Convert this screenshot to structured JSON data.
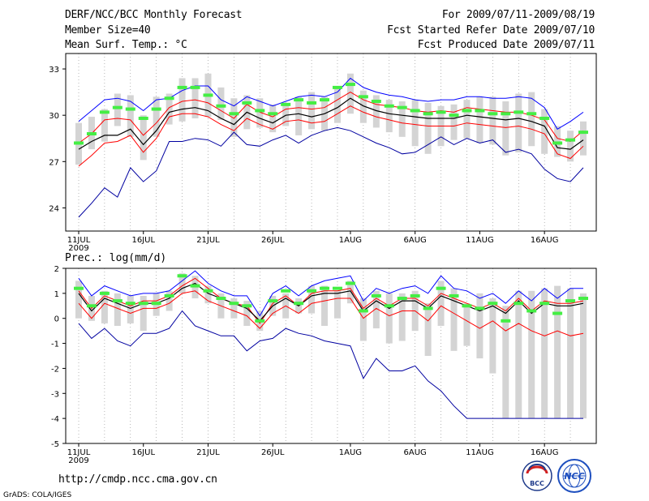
{
  "header": {
    "title": "DERF/NCC/BCC Monthly Forecast",
    "member_size": "Member Size=40",
    "variable": "Mean Surf. Temp.: °C",
    "period": "For 2009/07/11-2009/08/19",
    "fcst_started": "Fcst Started Refer Date 2009/07/10",
    "fcst_produced": "Fcst Produced Date 2009/07/11"
  },
  "colors": {
    "max_line": "#0000ff",
    "min_line": "#0000a0",
    "spread_line": "#ff0000",
    "mean_line": "#000000",
    "box": "#d4d4d4",
    "observed_marker": "#44ee44"
  },
  "footer": {
    "url": "http://cmdp.ncc.cma.gov.cn",
    "credit": "GrADS: COLA/IGES",
    "logo1_text": "BCC",
    "logo2_text": "NCC"
  },
  "chart_data": [
    {
      "type": "line",
      "title": "Mean Surf. Temp.: °C",
      "x_tick_labels": [
        "11JUL",
        "16JUL",
        "21JUL",
        "26JUL",
        "1AUG",
        "6AUG",
        "11AUG",
        "16AUG"
      ],
      "x_tick_days": [
        0,
        5,
        10,
        15,
        21,
        26,
        31,
        36
      ],
      "year_label": "2009",
      "days": 40,
      "ylim": [
        22.5,
        34
      ],
      "yticks": [
        24,
        27,
        30,
        33
      ],
      "series": [
        {
          "name": "max",
          "values": [
            29.6,
            30.3,
            31.0,
            31.1,
            30.9,
            30.3,
            31.0,
            31.1,
            31.6,
            31.9,
            31.9,
            31.0,
            30.6,
            31.2,
            30.9,
            30.6,
            30.9,
            31.2,
            31.3,
            31.2,
            31.5,
            32.4,
            31.8,
            31.5,
            31.3,
            31.2,
            31.0,
            30.9,
            31.0,
            31.0,
            31.2,
            31.2,
            31.1,
            31.1,
            31.2,
            31.1,
            30.5,
            29.1,
            29.6,
            30.2
          ]
        },
        {
          "name": "upper",
          "values": [
            28.2,
            28.8,
            29.7,
            29.8,
            29.7,
            28.7,
            29.5,
            30.5,
            30.9,
            31.0,
            30.8,
            30.3,
            29.8,
            30.7,
            30.2,
            29.9,
            30.4,
            30.5,
            30.4,
            30.5,
            31.0,
            31.5,
            31.0,
            30.7,
            30.6,
            30.5,
            30.3,
            30.2,
            30.3,
            30.2,
            30.5,
            30.4,
            30.3,
            30.2,
            30.2,
            30.0,
            29.7,
            28.5,
            28.3,
            29.0
          ]
        },
        {
          "name": "mean",
          "values": [
            27.8,
            28.3,
            28.7,
            28.7,
            29.1,
            28.1,
            29.0,
            30.2,
            30.4,
            30.5,
            30.3,
            29.8,
            29.4,
            30.2,
            29.8,
            29.5,
            30.0,
            30.1,
            29.9,
            30.1,
            30.5,
            31.1,
            30.6,
            30.3,
            30.1,
            30.0,
            29.9,
            29.8,
            29.8,
            29.8,
            30.0,
            29.9,
            29.8,
            29.7,
            29.8,
            29.6,
            29.3,
            27.9,
            27.8,
            28.4
          ]
        },
        {
          "name": "lower",
          "values": [
            26.7,
            27.4,
            28.2,
            28.3,
            28.7,
            27.6,
            28.5,
            29.9,
            30.1,
            30.1,
            29.9,
            29.4,
            29.0,
            29.8,
            29.4,
            29.1,
            29.6,
            29.7,
            29.5,
            29.6,
            30.1,
            30.6,
            30.2,
            29.9,
            29.7,
            29.5,
            29.4,
            29.3,
            29.3,
            29.3,
            29.5,
            29.4,
            29.3,
            29.2,
            29.3,
            29.1,
            28.8,
            27.5,
            27.2,
            28.0
          ]
        },
        {
          "name": "min",
          "values": [
            23.4,
            24.3,
            25.3,
            24.7,
            26.6,
            25.7,
            26.4,
            28.3,
            28.3,
            28.5,
            28.4,
            28.0,
            28.9,
            28.1,
            28.0,
            28.4,
            28.7,
            28.2,
            28.7,
            29.0,
            29.2,
            29.0,
            28.6,
            28.2,
            27.9,
            27.5,
            27.6,
            28.1,
            28.6,
            28.1,
            28.5,
            28.2,
            28.4,
            27.6,
            27.8,
            27.5,
            26.5,
            25.9,
            25.7,
            26.6
          ]
        }
      ],
      "boxes": [
        [
          26.8,
          29.5
        ],
        [
          27.8,
          29.9
        ],
        [
          28.3,
          30.4
        ],
        [
          29.3,
          31.4
        ],
        [
          28.6,
          31.3
        ],
        [
          27.1,
          30.0
        ],
        [
          28.6,
          31.2
        ],
        [
          29.4,
          31.4
        ],
        [
          29.6,
          32.4
        ],
        [
          29.8,
          32.4
        ],
        [
          29.9,
          32.7
        ],
        [
          29.7,
          31.8
        ],
        [
          28.6,
          31.1
        ],
        [
          29.1,
          31.3
        ],
        [
          29.2,
          31.1
        ],
        [
          28.9,
          30.7
        ],
        [
          29.3,
          30.8
        ],
        [
          28.7,
          31.2
        ],
        [
          29.1,
          31.5
        ],
        [
          29.0,
          31.2
        ],
        [
          29.5,
          31.8
        ],
        [
          30.1,
          32.7
        ],
        [
          29.5,
          31.6
        ],
        [
          29.2,
          31.3
        ],
        [
          28.9,
          31.0
        ],
        [
          28.6,
          30.9
        ],
        [
          28.0,
          31.0
        ],
        [
          27.5,
          30.8
        ],
        [
          28.0,
          30.6
        ],
        [
          28.4,
          30.7
        ],
        [
          28.5,
          31.0
        ],
        [
          28.2,
          31.2
        ],
        [
          28.1,
          31.2
        ],
        [
          27.4,
          30.9
        ],
        [
          27.6,
          31.4
        ],
        [
          28.0,
          31.5
        ],
        [
          27.5,
          30.4
        ],
        [
          27.3,
          29.3
        ],
        [
          27.0,
          29.0
        ],
        [
          27.4,
          29.6
        ]
      ],
      "markers": [
        28.2,
        28.8,
        30.2,
        30.5,
        30.4,
        29.8,
        30.4,
        31.1,
        31.8,
        31.8,
        31.3,
        30.6,
        30.1,
        30.8,
        30.3,
        30.1,
        30.7,
        31.0,
        30.8,
        31.0,
        31.8,
        32.0,
        31.2,
        30.9,
        30.6,
        30.5,
        30.3,
        30.1,
        30.2,
        30.0,
        30.3,
        30.3,
        30.1,
        30.1,
        30.2,
        30.1,
        29.8,
        28.2,
        28.4,
        28.9
      ]
    },
    {
      "type": "line",
      "title": "Prec.: log(mm/d)",
      "x_tick_labels": [
        "11JUL",
        "16JUL",
        "21JUL",
        "26JUL",
        "1AUG",
        "6AUG",
        "11AUG",
        "16AUG"
      ],
      "x_tick_days": [
        0,
        5,
        10,
        15,
        21,
        26,
        31,
        36
      ],
      "year_label": "2009",
      "days": 40,
      "ylim": [
        -5,
        2
      ],
      "yticks": [
        -5,
        -4,
        -3,
        -2,
        -1,
        0,
        1,
        2
      ],
      "series": [
        {
          "name": "max",
          "values": [
            1.6,
            0.9,
            1.3,
            1.1,
            0.9,
            1.0,
            1.0,
            1.1,
            1.5,
            1.9,
            1.4,
            1.1,
            0.9,
            0.9,
            0.1,
            1.0,
            1.3,
            0.9,
            1.3,
            1.5,
            1.6,
            1.7,
            0.7,
            1.2,
            1.0,
            1.2,
            1.3,
            1.0,
            1.7,
            1.2,
            1.1,
            0.8,
            1.0,
            0.6,
            1.1,
            0.7,
            1.2,
            0.8,
            1.2,
            1.2
          ]
        },
        {
          "name": "upper",
          "values": [
            1.1,
            0.4,
            0.9,
            0.7,
            0.5,
            0.7,
            0.7,
            0.9,
            1.3,
            1.6,
            1.2,
            0.8,
            0.6,
            0.5,
            -0.2,
            0.6,
            0.9,
            0.5,
            1.0,
            1.1,
            1.1,
            1.2,
            0.4,
            0.8,
            0.5,
            0.8,
            0.8,
            0.5,
            1.0,
            0.8,
            0.6,
            0.4,
            0.6,
            0.3,
            0.8,
            0.3,
            0.7,
            0.6,
            0.6,
            0.7
          ]
        },
        {
          "name": "mean",
          "values": [
            1.0,
            0.3,
            0.8,
            0.6,
            0.4,
            0.6,
            0.6,
            0.8,
            1.2,
            1.4,
            1.0,
            0.8,
            0.6,
            0.4,
            -0.1,
            0.5,
            0.8,
            0.5,
            0.9,
            1.0,
            1.0,
            1.1,
            0.3,
            0.7,
            0.4,
            0.7,
            0.7,
            0.4,
            0.9,
            0.7,
            0.5,
            0.3,
            0.5,
            0.2,
            0.7,
            0.2,
            0.6,
            0.5,
            0.5,
            0.6
          ]
        },
        {
          "name": "lower",
          "values": [
            0.6,
            0.0,
            0.6,
            0.4,
            0.2,
            0.4,
            0.4,
            0.6,
            1.0,
            1.1,
            0.7,
            0.5,
            0.3,
            0.1,
            -0.4,
            0.2,
            0.5,
            0.2,
            0.6,
            0.7,
            0.8,
            0.8,
            0.0,
            0.4,
            0.1,
            0.3,
            0.3,
            -0.1,
            0.5,
            0.2,
            -0.1,
            -0.4,
            -0.1,
            -0.5,
            -0.2,
            -0.5,
            -0.7,
            -0.5,
            -0.7,
            -0.6
          ]
        },
        {
          "name": "min",
          "values": [
            -0.2,
            -0.8,
            -0.4,
            -0.9,
            -1.1,
            -0.6,
            -0.6,
            -0.4,
            0.3,
            -0.3,
            -0.5,
            -0.7,
            -0.7,
            -1.3,
            -0.9,
            -0.8,
            -0.4,
            -0.6,
            -0.7,
            -0.9,
            -1.0,
            -1.1,
            -2.4,
            -1.6,
            -2.1,
            -2.1,
            -1.9,
            -2.5,
            -2.9,
            -3.5,
            -4.0,
            -4.0,
            -4.0,
            -4.0,
            -4.0,
            -4.0,
            -4.0,
            -4.0,
            -4.0,
            -4.0
          ]
        }
      ],
      "boxes": [
        [
          0.0,
          1.5
        ],
        [
          -0.1,
          0.9
        ],
        [
          -0.2,
          1.1
        ],
        [
          -0.3,
          1.0
        ],
        [
          -0.2,
          0.9
        ],
        [
          -0.5,
          0.9
        ],
        [
          0.1,
          1.0
        ],
        [
          0.3,
          1.1
        ],
        [
          1.0,
          1.8
        ],
        [
          0.8,
          1.7
        ],
        [
          0.6,
          1.3
        ],
        [
          0.0,
          1.0
        ],
        [
          0.0,
          0.8
        ],
        [
          -0.3,
          0.7
        ],
        [
          -0.5,
          0.3
        ],
        [
          0.1,
          0.9
        ],
        [
          0.0,
          1.0
        ],
        [
          0.2,
          0.8
        ],
        [
          0.2,
          1.3
        ],
        [
          -0.3,
          1.3
        ],
        [
          0.0,
          1.1
        ],
        [
          0.6,
          1.5
        ],
        [
          -0.9,
          0.8
        ],
        [
          -0.4,
          1.1
        ],
        [
          -1.0,
          1.0
        ],
        [
          -0.9,
          1.0
        ],
        [
          -0.5,
          1.1
        ],
        [
          -1.5,
          0.6
        ],
        [
          -0.3,
          1.5
        ],
        [
          -1.3,
          1.2
        ],
        [
          -1.1,
          0.6
        ],
        [
          -1.6,
          1.0
        ],
        [
          -2.2,
          0.8
        ],
        [
          -4.0,
          0.5
        ],
        [
          -4.0,
          1.1
        ],
        [
          -4.0,
          1.1
        ],
        [
          -4.0,
          1.2
        ],
        [
          -4.0,
          1.3
        ],
        [
          -4.0,
          1.2
        ],
        [
          -4.0,
          1.0
        ]
      ],
      "markers": [
        1.2,
        0.5,
        1.0,
        0.7,
        0.6,
        0.6,
        0.6,
        0.9,
        1.7,
        1.3,
        1.1,
        0.8,
        0.6,
        0.5,
        -0.1,
        0.7,
        1.1,
        0.6,
        1.1,
        1.2,
        1.2,
        1.4,
        0.3,
        0.9,
        0.5,
        0.8,
        0.9,
        0.4,
        1.2,
        0.9,
        0.5,
        0.4,
        0.6,
        -0.1,
        0.6,
        0.3,
        0.6,
        0.2,
        0.7,
        0.8
      ]
    }
  ]
}
